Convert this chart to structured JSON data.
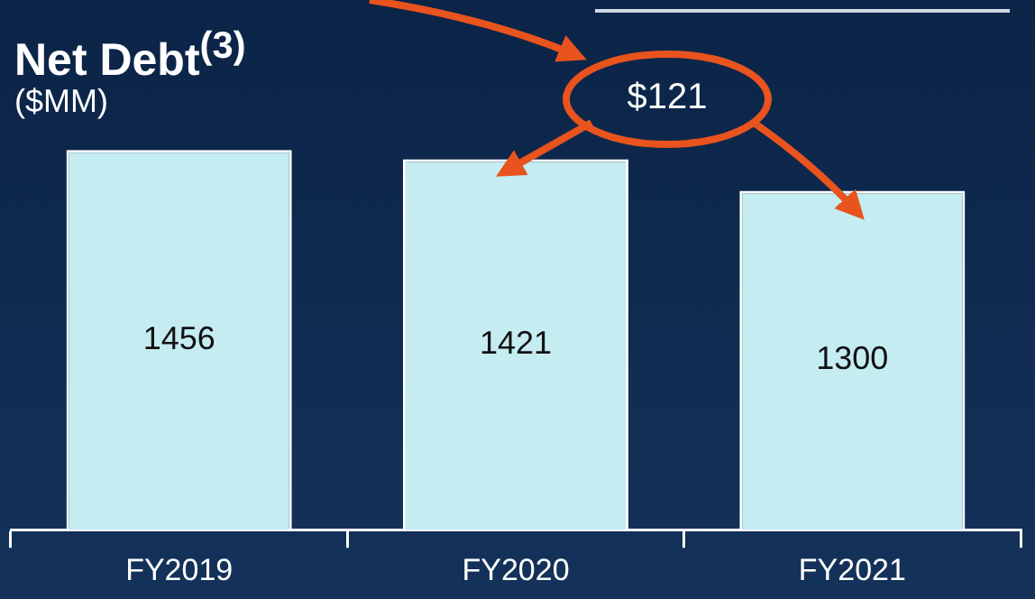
{
  "chart_data": {
    "type": "bar",
    "title": "Net Debt$^{(3)}$",
    "subtitle": "($MM)",
    "categories": [
      "FY2019",
      "FY2020",
      "FY2021"
    ],
    "values": [
      1456,
      1421,
      1300
    ],
    "color": "#c4ecf1",
    "data_labels": true,
    "grid": false,
    "legend": false,
    "annotations": [
      "$121"
    ]
  }
}
